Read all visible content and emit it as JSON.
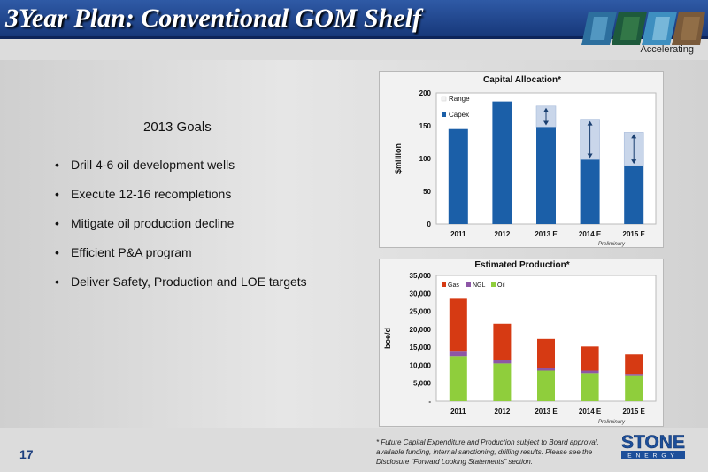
{
  "header": {
    "title": "3Year Plan:  Conventional GOM Shelf",
    "tagline": "Accelerating"
  },
  "goals": {
    "title": "2013 Goals",
    "items": [
      "Drill  4-6 oil development wells",
      "Execute 12-16 recompletions",
      "Mitigate oil production decline",
      "Efficient P&A program",
      "Deliver Safety, Production and LOE targets"
    ]
  },
  "footnote": "* Future Capital Expenditure and Production subject to Board approval, available funding, internal  sanctioning, drilling results.  Please see the Disclosure “Forward Looking Statements” section.",
  "page_number": "17",
  "logo": {
    "name": "STONE",
    "sub": "ENERGY"
  },
  "colors": {
    "header": "#1f468f",
    "capex": "#1b5fa8",
    "range": "#c9d6ea",
    "gas": "#d63a13",
    "ngl": "#8d56a6",
    "oil": "#8fce3c"
  },
  "chart_data": [
    {
      "type": "bar",
      "title": "Capital Allocation*",
      "ylabel": "$million",
      "xlabel": "",
      "note": "Preliminary",
      "categories": [
        "2011",
        "2012",
        "2013 E",
        "2014 E",
        "2015 E"
      ],
      "ylim": [
        0,
        200
      ],
      "yticks": [
        "0",
        "50",
        "100",
        "150",
        "200"
      ],
      "series": [
        {
          "name": "Capex",
          "values": [
            145,
            187,
            148,
            98,
            89
          ]
        },
        {
          "name": "Range",
          "values": [
            null,
            null,
            [
              148,
              180
            ],
            [
              98,
              160
            ],
            [
              89,
              140
            ]
          ]
        }
      ],
      "legend": "top-left"
    },
    {
      "type": "bar",
      "stacked": true,
      "title": "Estimated Production*",
      "ylabel": "boe/d",
      "xlabel": "",
      "note": "Preliminary",
      "categories": [
        "2011",
        "2012",
        "2013 E",
        "2014 E",
        "2015 E"
      ],
      "ylim": [
        0,
        35000
      ],
      "yticks": [
        "-",
        "5,000",
        "10,000",
        "15,000",
        "20,000",
        "25,000",
        "30,000",
        "35,000"
      ],
      "series": [
        {
          "name": "Oil",
          "values": [
            12500,
            10500,
            8500,
            7800,
            7000
          ]
        },
        {
          "name": "NGL",
          "values": [
            1500,
            1000,
            800,
            700,
            600
          ]
        },
        {
          "name": "Gas",
          "values": [
            14500,
            10000,
            8000,
            6700,
            5400
          ]
        }
      ],
      "legend": "top-left"
    }
  ]
}
